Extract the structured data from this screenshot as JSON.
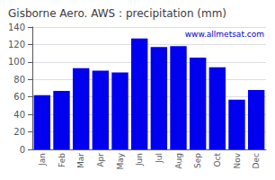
{
  "chart_data": {
    "type": "bar",
    "title": "Gisborne Aero. AWS : precipitation (mm)",
    "categories": [
      "Jan",
      "Feb",
      "Mar",
      "Apr",
      "May",
      "Jun",
      "Jul",
      "Aug",
      "Sep",
      "Oct",
      "Nov",
      "Dec"
    ],
    "values": [
      62,
      67,
      93,
      90,
      88,
      127,
      117,
      118,
      105,
      94,
      57,
      68
    ],
    "color": "#0000ee",
    "ylim": [
      0,
      140
    ],
    "yticks": [
      0,
      20,
      40,
      60,
      80,
      100,
      120,
      140
    ],
    "grid": true,
    "annotation": "www.allmetsat.com"
  }
}
